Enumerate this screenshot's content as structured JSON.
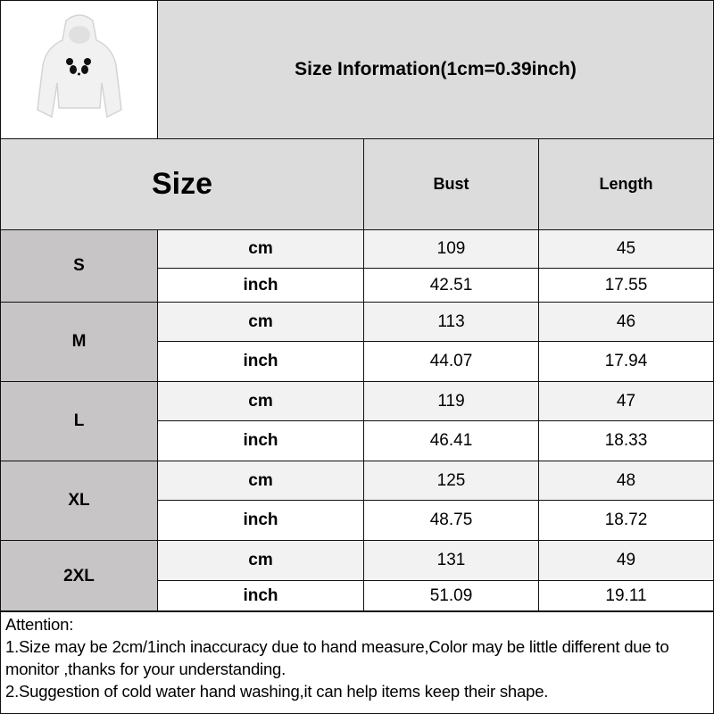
{
  "title": "Size Information(1cm=0.39inch)",
  "header": {
    "size": "Size",
    "bust": "Bust",
    "length": "Length"
  },
  "product_image": "white cropped hoodie with panda face",
  "rows": [
    {
      "size": "S",
      "cm": {
        "unit": "cm",
        "bust": "109",
        "length": "45"
      },
      "inch": {
        "unit": "inch",
        "bust": "42.51",
        "length": "17.55"
      }
    },
    {
      "size": "M",
      "cm": {
        "unit": "cm",
        "bust": "113",
        "length": "46"
      },
      "inch": {
        "unit": "inch",
        "bust": "44.07",
        "length": "17.94"
      }
    },
    {
      "size": "L",
      "cm": {
        "unit": "cm",
        "bust": "119",
        "length": "47"
      },
      "inch": {
        "unit": "inch",
        "bust": "46.41",
        "length": "18.33"
      }
    },
    {
      "size": "XL",
      "cm": {
        "unit": "cm",
        "bust": "125",
        "length": "48"
      },
      "inch": {
        "unit": "inch",
        "bust": "48.75",
        "length": "18.72"
      }
    },
    {
      "size": "2XL",
      "cm": {
        "unit": "cm",
        "bust": "131",
        "length": "49"
      },
      "inch": {
        "unit": "inch",
        "bust": "51.09",
        "length": "19.11"
      }
    }
  ],
  "attention": {
    "heading": "Attention:",
    "lines": [
      "1.Size may be 2cm/1inch inaccuracy due to hand measure,Color may be little different due to monitor ,thanks for your understanding.",
      "2.Suggestion of cold water hand washing,it can help items keep their shape."
    ]
  }
}
